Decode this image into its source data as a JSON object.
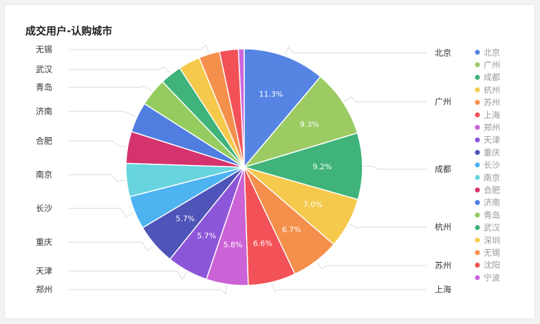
{
  "title": "成交用户-认购城市",
  "chart_data": {
    "type": "pie",
    "title": "成交用户-认购城市",
    "legend_position": "right",
    "categories": [
      "北京",
      "广州",
      "成都",
      "杭州",
      "苏州",
      "上海",
      "郑州",
      "天津",
      "重庆",
      "长沙",
      "南京",
      "合肥",
      "济南",
      "青岛",
      "武汉",
      "深圳",
      "无锡",
      "沈阳",
      "宁波"
    ],
    "values": [
      11.3,
      9.3,
      9.2,
      7.0,
      6.7,
      6.6,
      5.8,
      5.7,
      5.7,
      4.6,
      4.6,
      4.4,
      4.2,
      3.9,
      3.0,
      3.0,
      2.9,
      2.6,
      0.8
    ],
    "data_labels": [
      "11.3%",
      "9.3%",
      "9.2%",
      "7.0%",
      "6.7%",
      "6.6%",
      "5.8%",
      "5.7%",
      "5.7%",
      "",
      "",
      "",
      "",
      "",
      "",
      "",
      "",
      "",
      ""
    ],
    "outer_labels": [
      "北京",
      "广州",
      "成都",
      "杭州",
      "苏州",
      "上海",
      "郑州",
      "天津",
      "重庆",
      "长沙",
      "南京",
      "合肥",
      "济南",
      "青岛",
      "武汉",
      "",
      "无锡",
      "",
      ""
    ],
    "colors": [
      "#5584e3",
      "#9ccb64",
      "#3fb37a",
      "#f5c94c",
      "#f4904c",
      "#f25257",
      "#cb62d6",
      "#8c56d9",
      "#4f54b8",
      "#4db3f1",
      "#67d4de",
      "#d4336e",
      "#4f7ee0",
      "#95cc5f",
      "#3fb37a",
      "#f5c94c",
      "#f4904c",
      "#f25257",
      "#cc66dd"
    ]
  }
}
